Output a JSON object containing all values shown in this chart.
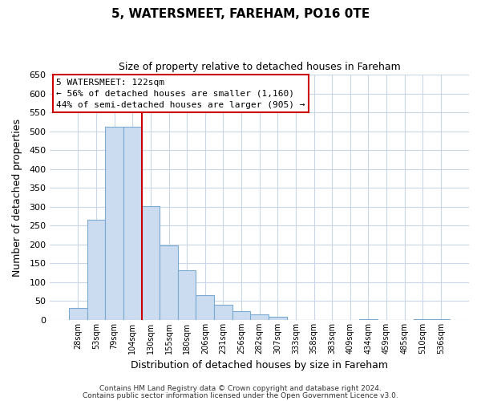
{
  "title": "5, WATERSMEET, FAREHAM, PO16 0TE",
  "subtitle": "Size of property relative to detached houses in Fareham",
  "xlabel": "Distribution of detached houses by size in Fareham",
  "ylabel": "Number of detached properties",
  "categories": [
    "28sqm",
    "53sqm",
    "79sqm",
    "104sqm",
    "130sqm",
    "155sqm",
    "180sqm",
    "206sqm",
    "231sqm",
    "256sqm",
    "282sqm",
    "307sqm",
    "333sqm",
    "358sqm",
    "383sqm",
    "409sqm",
    "434sqm",
    "459sqm",
    "485sqm",
    "510sqm",
    "536sqm"
  ],
  "values": [
    32,
    265,
    512,
    512,
    302,
    197,
    132,
    65,
    40,
    23,
    15,
    8,
    0,
    0,
    0,
    0,
    3,
    0,
    0,
    3,
    3
  ],
  "bar_color": "#ccdcf0",
  "bar_edge_color": "#7aaad0",
  "vline_color": "#cc0000",
  "vline_x_index": 4,
  "annotation_title": "5 WATERSMEET: 122sqm",
  "annotation_line1": "← 56% of detached houses are smaller (1,160)",
  "annotation_line2": "44% of semi-detached houses are larger (905) →",
  "annotation_box_facecolor": "#ffffff",
  "annotation_box_edgecolor": "#cc0000",
  "ylim": [
    0,
    650
  ],
  "yticks": [
    0,
    50,
    100,
    150,
    200,
    250,
    300,
    350,
    400,
    450,
    500,
    550,
    600,
    650
  ],
  "footer1": "Contains HM Land Registry data © Crown copyright and database right 2024.",
  "footer2": "Contains public sector information licensed under the Open Government Licence v3.0.",
  "bg_color": "#ffffff",
  "plot_bg_color": "#ffffff",
  "grid_color": "#c8d8e8"
}
